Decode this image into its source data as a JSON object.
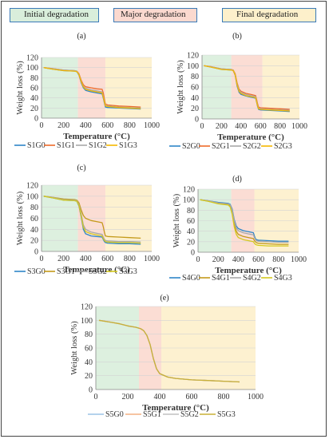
{
  "figure_legend": [
    {
      "label": "Initial degradation",
      "color": "#d9eedb"
    },
    {
      "label": "Major degradation",
      "color": "#fbd9cf"
    },
    {
      "label": "Final degradation",
      "color": "#fdf0cb"
    }
  ],
  "chart_data": [
    {
      "type": "line",
      "panel_label": "(a)",
      "xlabel": "Temperature (°C)",
      "ylabel": "Weight loss (%)",
      "xlim": [
        0,
        1000
      ],
      "ylim": [
        0,
        120
      ],
      "xticks": [
        0,
        200,
        400,
        600,
        800,
        1000
      ],
      "yticks": [
        0,
        20,
        40,
        60,
        80,
        100,
        120
      ],
      "regions": [
        [
          0,
          330
        ],
        [
          330,
          580
        ],
        [
          580,
          1000
        ]
      ],
      "x": [
        20,
        100,
        200,
        300,
        320,
        340,
        360,
        380,
        400,
        450,
        500,
        550,
        560,
        570,
        580,
        600,
        700,
        800,
        900
      ],
      "series": [
        {
          "name": "S1G0",
          "color": "#2e86c8",
          "values": [
            100,
            97,
            94,
            93,
            92,
            85,
            70,
            60,
            55,
            52,
            50,
            48,
            40,
            30,
            22,
            21,
            20,
            19,
            18
          ]
        },
        {
          "name": "S1G1",
          "color": "#ee6a2a",
          "values": [
            100,
            98,
            95,
            94,
            93,
            88,
            75,
            66,
            62,
            60,
            58,
            57,
            50,
            38,
            28,
            26,
            24,
            23,
            22
          ]
        },
        {
          "name": "S1G2",
          "color": "#a8a8a8",
          "values": [
            100,
            98,
            95,
            94,
            93,
            87,
            73,
            63,
            59,
            56,
            54,
            52,
            44,
            34,
            25,
            24,
            22,
            21,
            20
          ]
        },
        {
          "name": "S1G3",
          "color": "#f5b800",
          "values": [
            100,
            97,
            94,
            93,
            92,
            86,
            72,
            62,
            57,
            54,
            52,
            50,
            42,
            32,
            24,
            23,
            21,
            20,
            19
          ]
        }
      ]
    },
    {
      "type": "line",
      "panel_label": "(b)",
      "xlabel": "Temperature (°C)",
      "ylabel": "Weight loss (%)",
      "xlim": [
        0,
        1000
      ],
      "ylim": [
        0,
        120
      ],
      "xticks": [
        0,
        200,
        400,
        600,
        800,
        1000
      ],
      "yticks": [
        0,
        20,
        40,
        60,
        80,
        100,
        120
      ],
      "regions": [
        [
          0,
          300
        ],
        [
          300,
          620
        ],
        [
          620,
          1000
        ]
      ],
      "x": [
        20,
        100,
        200,
        300,
        320,
        340,
        360,
        380,
        400,
        450,
        500,
        550,
        560,
        570,
        580,
        600,
        700,
        800,
        900
      ],
      "series": [
        {
          "name": "S2G0",
          "color": "#2e86c8",
          "values": [
            100,
            97,
            93,
            92,
            91,
            82,
            62,
            50,
            46,
            43,
            41,
            39,
            32,
            24,
            18,
            17,
            16,
            15,
            14
          ]
        },
        {
          "name": "S2G1",
          "color": "#ee6a2a",
          "values": [
            100,
            98,
            94,
            93,
            92,
            85,
            68,
            56,
            52,
            48,
            46,
            44,
            37,
            29,
            22,
            21,
            20,
            19,
            18
          ]
        },
        {
          "name": "S2G2",
          "color": "#a8a8a8",
          "values": [
            100,
            98,
            94,
            93,
            92,
            84,
            66,
            54,
            50,
            46,
            44,
            42,
            35,
            27,
            20,
            19,
            18,
            17,
            16
          ]
        },
        {
          "name": "S2G3",
          "color": "#f5b800",
          "values": [
            100,
            97,
            93,
            92,
            91,
            83,
            64,
            52,
            48,
            44,
            42,
            40,
            33,
            25,
            19,
            18,
            17,
            16,
            15
          ]
        }
      ]
    },
    {
      "type": "line",
      "panel_label": "(c)",
      "xlabel": "Temperature (°C)",
      "ylabel": "Weight loss (%)",
      "xlim": [
        0,
        1000
      ],
      "ylim": [
        0,
        120
      ],
      "xticks": [
        0,
        200,
        400,
        600,
        800,
        1000
      ],
      "yticks": [
        0,
        20,
        40,
        60,
        80,
        100,
        120
      ],
      "regions": [
        [
          0,
          330
        ],
        [
          330,
          580
        ],
        [
          580,
          1000
        ]
      ],
      "x": [
        20,
        100,
        200,
        300,
        320,
        340,
        360,
        380,
        400,
        450,
        500,
        550,
        560,
        570,
        580,
        600,
        700,
        800,
        900
      ],
      "series": [
        {
          "name": "S3G0",
          "color": "#2e86c8",
          "values": [
            100,
            97,
            93,
            92,
            91,
            82,
            62,
            40,
            32,
            28,
            27,
            26,
            22,
            18,
            16,
            15,
            14,
            14,
            13
          ]
        },
        {
          "name": "S3G1",
          "color": "#c49a1a",
          "values": [
            100,
            98,
            95,
            94,
            93,
            88,
            75,
            65,
            60,
            56,
            54,
            52,
            45,
            35,
            28,
            27,
            26,
            25,
            24
          ]
        },
        {
          "name": "S3G2",
          "color": "#a8a8a8",
          "values": [
            100,
            98,
            94,
            93,
            92,
            85,
            68,
            48,
            40,
            35,
            33,
            31,
            26,
            22,
            20,
            19,
            18,
            18,
            17
          ]
        },
        {
          "name": "S3G3",
          "color": "#d4c81e",
          "values": [
            100,
            97,
            93,
            92,
            91,
            83,
            64,
            44,
            36,
            32,
            30,
            28,
            24,
            20,
            18,
            17,
            16,
            16,
            15
          ]
        }
      ]
    },
    {
      "type": "line",
      "panel_label": "(d)",
      "xlabel": "Temperature (°C)",
      "ylabel": "Weight loss (%)",
      "xlim": [
        0,
        1000
      ],
      "ylim": [
        0,
        120
      ],
      "xticks": [
        0,
        200,
        400,
        600,
        800,
        1000
      ],
      "yticks": [
        0,
        20,
        40,
        60,
        80,
        100,
        120
      ],
      "regions": [
        [
          0,
          330
        ],
        [
          330,
          560
        ],
        [
          560,
          1000
        ]
      ],
      "x": [
        20,
        100,
        200,
        300,
        320,
        340,
        360,
        380,
        400,
        450,
        500,
        550,
        560,
        570,
        580,
        600,
        700,
        800,
        900
      ],
      "series": [
        {
          "name": "S4G0",
          "color": "#2e86c8",
          "values": [
            100,
            98,
            95,
            93,
            91,
            82,
            62,
            50,
            45,
            41,
            39,
            37,
            31,
            26,
            24,
            23,
            22,
            21,
            21
          ]
        },
        {
          "name": "S4G1",
          "color": "#c49a1a",
          "values": [
            100,
            97,
            93,
            91,
            88,
            76,
            54,
            40,
            34,
            30,
            28,
            26,
            22,
            20,
            18,
            17,
            16,
            15,
            15
          ]
        },
        {
          "name": "S4G2",
          "color": "#a8a8a8",
          "values": [
            100,
            98,
            94,
            92,
            90,
            80,
            60,
            46,
            41,
            37,
            35,
            33,
            28,
            24,
            22,
            21,
            20,
            19,
            19
          ]
        },
        {
          "name": "S4G3",
          "color": "#d4c81e",
          "values": [
            100,
            97,
            92,
            90,
            86,
            72,
            48,
            34,
            28,
            24,
            22,
            20,
            17,
            15,
            14,
            13,
            12,
            12,
            12
          ]
        }
      ]
    },
    {
      "type": "line",
      "panel_label": "(e)",
      "xlabel": "Temperature (°C)",
      "ylabel": "Weight loss (%)",
      "xlim": [
        0,
        1000
      ],
      "ylim": [
        0,
        120
      ],
      "xticks": [
        0,
        200,
        400,
        600,
        800,
        1000
      ],
      "yticks": [
        0,
        20,
        40,
        60,
        80,
        100,
        120
      ],
      "regions": [
        [
          0,
          270
        ],
        [
          270,
          410
        ],
        [
          410,
          1000
        ]
      ],
      "x": [
        20,
        100,
        150,
        200,
        250,
        280,
        300,
        320,
        340,
        360,
        380,
        400,
        450,
        500,
        600,
        700,
        800,
        900
      ],
      "series": [
        {
          "name": "S5G0",
          "color": "#9cc3e6",
          "values": [
            100,
            97,
            95,
            92,
            90,
            88,
            85,
            78,
            65,
            45,
            30,
            23,
            18,
            16,
            14,
            13,
            12,
            11
          ]
        },
        {
          "name": "S5G1",
          "color": "#f4b183",
          "values": [
            100,
            97,
            95,
            92,
            90,
            88,
            85,
            78,
            65,
            45,
            30,
            23,
            18,
            16,
            14,
            13,
            12,
            11
          ]
        },
        {
          "name": "S5G2",
          "color": "#c0c0c0",
          "values": [
            100,
            97,
            95,
            92,
            90,
            88,
            85,
            78,
            65,
            45,
            30,
            23,
            18,
            16,
            14,
            13,
            12,
            11
          ]
        },
        {
          "name": "S5G3",
          "color": "#c9b037",
          "values": [
            100,
            97,
            95,
            92,
            90,
            88,
            85,
            78,
            65,
            45,
            30,
            23,
            18,
            16,
            14,
            13,
            12,
            11
          ]
        }
      ]
    }
  ]
}
